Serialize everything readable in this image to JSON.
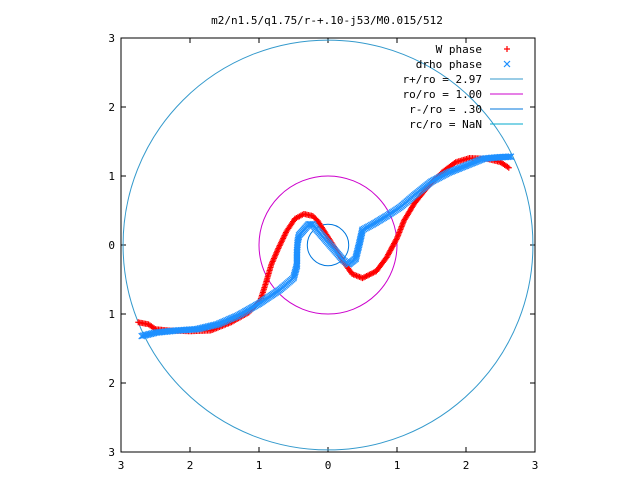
{
  "chart_data": {
    "type": "scatter",
    "title": "m2/n1.5/q1.75/r-+.10-j53/M0.015/512",
    "xlim": [
      -3,
      3
    ],
    "ylim": [
      -3,
      3
    ],
    "x_ticks": [
      -3,
      -2,
      -1,
      0,
      1,
      2,
      3
    ],
    "y_ticks": [
      -3,
      -2,
      -1,
      0,
      1,
      2,
      3
    ],
    "x_tick_labels": [
      "3",
      "2",
      "1",
      "0",
      "1",
      "2",
      "3"
    ],
    "y_tick_labels": [
      "3",
      "2",
      "1",
      "0",
      "1",
      "2",
      "3"
    ],
    "grid": false,
    "legend_position": "top-right",
    "colors": {
      "w_phase": "#ff0000",
      "drho_phase": "#1e90ff",
      "r_plus": "#3399cc",
      "ro": "#cc00cc",
      "r_minus": "#0077dd",
      "rc": "#00aacc"
    },
    "series": [
      {
        "name": "W phase",
        "kind": "points",
        "marker": "plus",
        "color": "#ff0000",
        "anchors": [
          [
            -2.75,
            -1.12
          ],
          [
            -2.6,
            -1.15
          ],
          [
            -2.5,
            -1.22
          ],
          [
            -2.3,
            -1.24
          ],
          [
            -2.0,
            -1.25
          ],
          [
            -1.7,
            -1.24
          ],
          [
            -1.4,
            -1.12
          ],
          [
            -1.15,
            -0.98
          ],
          [
            -0.98,
            -0.8
          ],
          [
            -0.9,
            -0.55
          ],
          [
            -0.82,
            -0.28
          ],
          [
            -0.72,
            -0.05
          ],
          [
            -0.6,
            0.2
          ],
          [
            -0.48,
            0.38
          ],
          [
            -0.35,
            0.45
          ],
          [
            -0.22,
            0.42
          ],
          [
            -0.15,
            0.35
          ],
          [
            0.25,
            -0.28
          ],
          [
            0.35,
            -0.42
          ],
          [
            0.5,
            -0.48
          ],
          [
            0.7,
            -0.38
          ],
          [
            0.85,
            -0.18
          ],
          [
            1.0,
            0.1
          ],
          [
            1.1,
            0.35
          ],
          [
            1.25,
            0.6
          ],
          [
            1.45,
            0.85
          ],
          [
            1.65,
            1.05
          ],
          [
            1.85,
            1.2
          ],
          [
            2.05,
            1.26
          ],
          [
            2.3,
            1.25
          ],
          [
            2.5,
            1.2
          ],
          [
            2.62,
            1.12
          ]
        ]
      },
      {
        "name": "drho phase",
        "kind": "points",
        "marker": "cross",
        "color": "#1e90ff",
        "anchors": [
          [
            -2.7,
            -1.32
          ],
          [
            -2.5,
            -1.27
          ],
          [
            -2.2,
            -1.24
          ],
          [
            -1.9,
            -1.22
          ],
          [
            -1.6,
            -1.15
          ],
          [
            -1.3,
            -1.02
          ],
          [
            -1.0,
            -0.85
          ],
          [
            -0.7,
            -0.65
          ],
          [
            -0.5,
            -0.48
          ],
          [
            -0.45,
            -0.3
          ],
          [
            -0.45,
            -0.1
          ],
          [
            -0.44,
            0.05
          ],
          [
            -0.42,
            0.14
          ],
          [
            -0.35,
            0.22
          ],
          [
            -0.28,
            0.3
          ],
          [
            -0.22,
            0.3
          ],
          [
            -0.18,
            0.24
          ],
          [
            0.22,
            -0.22
          ],
          [
            0.3,
            -0.28
          ],
          [
            0.4,
            -0.2
          ],
          [
            0.45,
            0.0
          ],
          [
            0.5,
            0.22
          ],
          [
            0.65,
            0.3
          ],
          [
            0.85,
            0.42
          ],
          [
            1.05,
            0.55
          ],
          [
            1.25,
            0.72
          ],
          [
            1.5,
            0.92
          ],
          [
            1.75,
            1.05
          ],
          [
            2.0,
            1.15
          ],
          [
            2.25,
            1.25
          ],
          [
            2.45,
            1.27
          ],
          [
            2.65,
            1.28
          ]
        ]
      },
      {
        "name": "r+/ro = 2.97",
        "kind": "circle",
        "radius": 2.97,
        "color": "#3399cc"
      },
      {
        "name": "ro/ro = 1.00",
        "kind": "circle",
        "radius": 1.0,
        "color": "#cc00cc"
      },
      {
        "name": "r-/ro = .30",
        "kind": "circle",
        "radius": 0.3,
        "color": "#0077dd"
      },
      {
        "name": "rc/ro = NaN",
        "kind": "circle",
        "radius": null,
        "color": "#00aacc"
      }
    ]
  }
}
